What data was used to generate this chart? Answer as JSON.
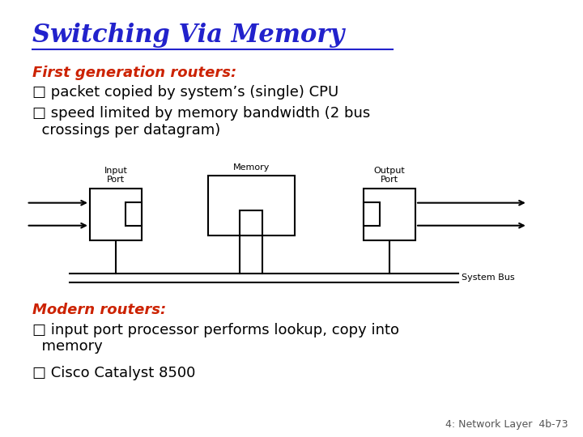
{
  "title": "Switching Via Memory",
  "title_color": "#2222CC",
  "bg_color": "#FFFFFF",
  "section1_label": "First generation routers:",
  "section1_color": "#CC2200",
  "bullet1a": "□ packet copied by system’s (single) CPU",
  "bullet1b": "□ speed limited by memory bandwidth (2 bus\n  crossings per datagram)",
  "bullet_color1": "#000000",
  "diagram_input_label": "Input\nPort",
  "diagram_memory_label": "Memory",
  "diagram_output_label": "Output\nPort",
  "diagram_bus_label": "System Bus",
  "section2_label": "Modern routers:",
  "section2_color": "#CC2200",
  "bullet2a": "□ input port processor performs lookup, copy into\n  memory",
  "bullet2b": "□ Cisco Catalyst 8500",
  "bullet_color2": "#000000",
  "footnote": "4: Network Layer  4b-73",
  "footnote_color": "#555555"
}
